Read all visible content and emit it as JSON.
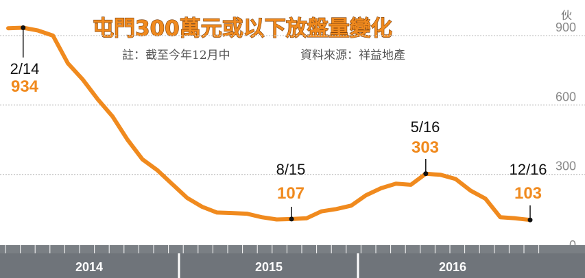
{
  "chart_data": {
    "type": "line",
    "title": "屯門300萬元或以下放盤量變化",
    "note": "註：截至今年12月中",
    "source": "資料來源：祥益地產",
    "unit": "伙",
    "yticks": [
      "900",
      "600",
      "300",
      "0"
    ],
    "ylim": [
      0,
      1000
    ],
    "grid": true,
    "categories": [
      "2014",
      "2015",
      "2016"
    ],
    "series": [
      {
        "x": [
          "2014-01",
          "2014-02",
          "2014-03",
          "2014-04",
          "2014-05",
          "2014-06",
          "2014-07",
          "2014-08",
          "2014-09",
          "2014-10",
          "2014-11",
          "2014-12",
          "2015-01",
          "2015-02",
          "2015-03",
          "2015-04",
          "2015-05",
          "2015-06",
          "2015-07",
          "2015-08",
          "2015-09",
          "2015-10",
          "2015-11",
          "2015-12",
          "2016-01",
          "2016-02",
          "2016-03",
          "2016-04",
          "2016-05",
          "2016-06",
          "2016-07",
          "2016-08",
          "2016-09",
          "2016-10",
          "2016-11",
          "2016-12"
        ],
        "values": [
          932,
          934,
          922,
          900,
          780,
          710,
          625,
          550,
          450,
          365,
          318,
          258,
          198,
          160,
          135,
          133,
          130,
          115,
          105,
          107,
          110,
          140,
          150,
          165,
          210,
          240,
          260,
          255,
          303,
          298,
          280,
          230,
          195,
          115,
          110,
          103
        ],
        "color": "#f08a1e"
      }
    ],
    "annotations": [
      {
        "date": "2/14",
        "value": "934",
        "index": 1
      },
      {
        "date": "8/15",
        "value": "107",
        "index": 19
      },
      {
        "date": "5/16",
        "value": "303",
        "index": 28
      },
      {
        "date": "12/16",
        "value": "103",
        "index": 35
      }
    ]
  }
}
